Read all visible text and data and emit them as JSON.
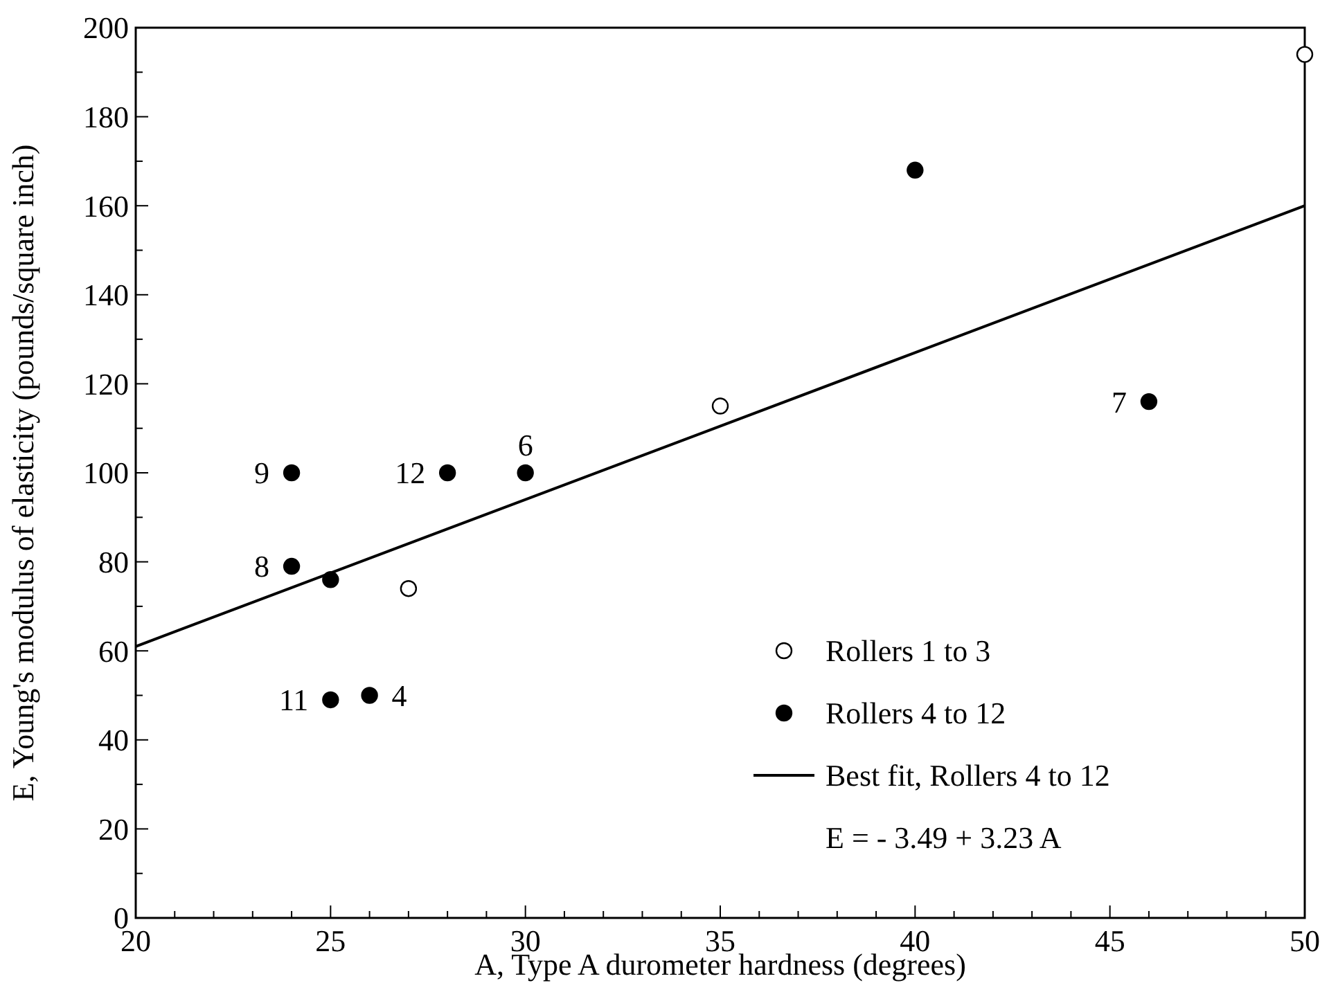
{
  "chart_data": {
    "type": "scatter",
    "xlabel": "A, Type A durometer hardness (degrees)",
    "ylabel": "E, Young's modulus of elasticity (pounds/square inch)",
    "xlim": [
      20,
      50
    ],
    "ylim": [
      0,
      200
    ],
    "xticks": [
      20,
      {
        "value": 21,
        "label": null
      },
      {
        "value": 22,
        "label": null
      },
      {
        "value": 23,
        "label": null
      },
      {
        "value": 24,
        "label": null
      },
      25,
      {
        "value": 26,
        "label": null
      },
      {
        "value": 27,
        "label": null
      },
      {
        "value": 28,
        "label": null
      },
      {
        "value": 29,
        "label": null
      },
      30,
      {
        "value": 31,
        "label": null
      },
      {
        "value": 32,
        "label": null
      },
      {
        "value": 33,
        "label": null
      },
      {
        "value": 34,
        "label": null
      },
      35,
      {
        "value": 36,
        "label": null
      },
      {
        "value": 37,
        "label": null
      },
      {
        "value": 38,
        "label": null
      },
      {
        "value": 39,
        "label": null
      },
      40,
      {
        "value": 41,
        "label": null
      },
      {
        "value": 42,
        "label": null
      },
      {
        "value": 43,
        "label": null
      },
      {
        "value": 44,
        "label": null
      },
      45,
      {
        "value": 46,
        "label": null
      },
      {
        "value": 47,
        "label": null
      },
      {
        "value": 48,
        "label": null
      },
      {
        "value": 49,
        "label": null
      },
      50
    ],
    "yticks": [
      0,
      {
        "value": 10,
        "label": null
      },
      20,
      {
        "value": 30,
        "label": null
      },
      40,
      {
        "value": 50,
        "label": null
      },
      60,
      {
        "value": 70,
        "label": null
      },
      80,
      {
        "value": 90,
        "label": null
      },
      100,
      {
        "value": 110,
        "label": null
      },
      120,
      {
        "value": 130,
        "label": null
      },
      140,
      {
        "value": 150,
        "label": null
      },
      160,
      {
        "value": 170,
        "label": null
      },
      180,
      {
        "value": 190,
        "label": null
      },
      200
    ],
    "grid": false,
    "legend": "bottom right",
    "marker": "circle",
    "series": [
      {
        "name": "Rollers 1 to 3",
        "color": "#ffffff",
        "x": [
          27,
          35,
          50
        ],
        "values": [
          74,
          115,
          194
        ]
      },
      {
        "name": "Rollers 4 to 12",
        "color": "#000000",
        "x": [
          24,
          28,
          30,
          24,
          25,
          25,
          26,
          40,
          46
        ],
        "values": [
          100,
          100,
          100,
          79,
          76,
          49,
          50,
          168,
          116
        ]
      },
      {
        "name": "Best fit, Rollers 4 to 12",
        "type": "line",
        "color": "#000000",
        "marker": "none",
        "line_style": "solid",
        "x": [
          20,
          50
        ],
        "values": [
          61,
          160
        ]
      }
    ],
    "annotations": [
      {
        "text": "9",
        "x": 24,
        "y": 100
      },
      {
        "text": "12",
        "x": 28,
        "y": 100
      },
      {
        "text": "6",
        "x": 30,
        "y": 100
      },
      {
        "text": "8",
        "x": 24,
        "y": 79
      },
      {
        "text": "11",
        "x": 25,
        "y": 49
      },
      {
        "text": "4",
        "x": 26,
        "y": 50
      },
      {
        "text": "7",
        "x": 46,
        "y": 116
      },
      "E = - 3.49 + 3.23 A"
    ]
  }
}
